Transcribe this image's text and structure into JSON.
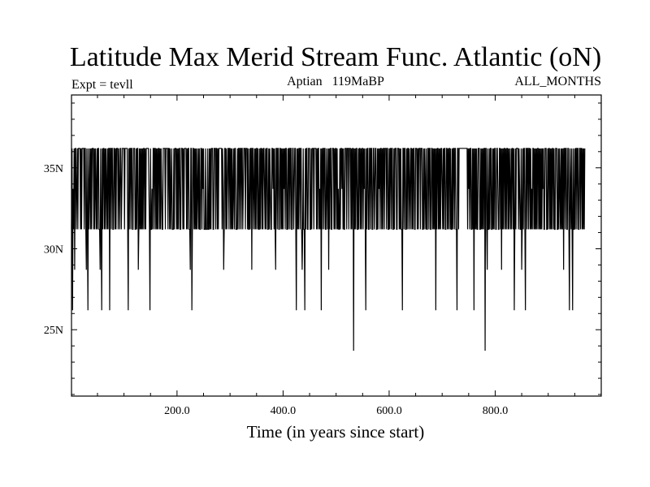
{
  "chart_data": {
    "type": "line",
    "title": "Latitude Max Merid Stream Func. Atlantic (oN)",
    "subtitle_left": "Expt = tevll",
    "subtitle_center": "Aptian   119MaBP",
    "subtitle_right": "ALL_MONTHS",
    "xlabel": "Time (in years since start)",
    "ylabel": "",
    "xlim": [
      1,
      1000
    ],
    "ylim": [
      20.9,
      39.5
    ],
    "x_ticks": [
      200,
      400,
      600,
      800
    ],
    "x_tick_labels": [
      "200.0",
      "400.0",
      "600.0",
      "800.0"
    ],
    "y_ticks": [
      25,
      30,
      35
    ],
    "y_tick_labels": [
      "25N",
      "30N",
      "35N"
    ],
    "grid": false,
    "levels": [
      23.7,
      26.2,
      28.7,
      31.2,
      33.7,
      36.2
    ],
    "series": [
      {
        "x_start": 1,
        "x_step": 1,
        "values": [
          31.2,
          36.2,
          26.2,
          33.7,
          31.2,
          36.2,
          28.7,
          36.2,
          36.2,
          31.2,
          33.7,
          36.2,
          31.2,
          36.2,
          36.2,
          36.2,
          36.2,
          31.2,
          36.2,
          31.2,
          36.2,
          36.2,
          36.2,
          36.2,
          31.2,
          36.2,
          36.2,
          31.2,
          28.7,
          36.2,
          31.2,
          26.2,
          36.2,
          31.2,
          33.7,
          36.2,
          31.2,
          36.2,
          31.2,
          36.2,
          36.2,
          36.2,
          31.2,
          36.2,
          31.2,
          36.2,
          33.7,
          31.2,
          36.2,
          31.2,
          36.2,
          36.2,
          31.2,
          31.2,
          28.7,
          36.2,
          31.2,
          26.2,
          36.2,
          31.2,
          36.2,
          36.2,
          31.2,
          36.2,
          31.2,
          36.2,
          33.7,
          31.2,
          36.2,
          31.2,
          36.2,
          36.2,
          26.2,
          36.2,
          36.2,
          31.2,
          36.2,
          36.2,
          31.2,
          31.2,
          36.2,
          36.2,
          31.2,
          36.2,
          31.2,
          36.2,
          36.2,
          36.2,
          31.2,
          36.2,
          33.7,
          31.2,
          36.2,
          36.2,
          31.2,
          33.7,
          36.2,
          36.2,
          36.2,
          36.2,
          31.2,
          36.2,
          36.2,
          36.2,
          36.2,
          36.2,
          31.2,
          26.2,
          36.2,
          31.2,
          36.2,
          36.2,
          31.2,
          36.2,
          36.2,
          31.2,
          31.2,
          36.2,
          36.2,
          36.2,
          31.2,
          31.2,
          36.2,
          31.2,
          36.2,
          36.2,
          28.7,
          31.2,
          36.2,
          31.2,
          36.2,
          31.2,
          36.2,
          31.2,
          36.2,
          31.2,
          36.2,
          36.2,
          31.2,
          36.2,
          31.2,
          36.2,
          36.2,
          36.2,
          36.2,
          36.2,
          33.7,
          31.2,
          26.2,
          36.2,
          31.2,
          31.2,
          33.7,
          31.2,
          36.2,
          36.2,
          31.2,
          36.2,
          36.2,
          31.2,
          36.2,
          31.2,
          36.2,
          31.2,
          36.2,
          36.2,
          31.2,
          36.2,
          31.2,
          36.2,
          33.7,
          31.2,
          31.2,
          36.2,
          36.2,
          36.2,
          36.2,
          31.2,
          36.2,
          36.2,
          36.2,
          36.2,
          31.2,
          36.2,
          36.2,
          31.2,
          36.2,
          31.2,
          33.7,
          36.2,
          31.2,
          31.2,
          31.2,
          36.2,
          31.2,
          36.2,
          36.2,
          36.2,
          31.2,
          36.2,
          31.2,
          36.2,
          31.2,
          36.2,
          36.2,
          31.2,
          31.2,
          36.2,
          36.2,
          36.2,
          31.2,
          36.2,
          31.2,
          36.2,
          36.2,
          36.2,
          36.2,
          31.2,
          36.2,
          31.2,
          36.2,
          36.2,
          31.2,
          31.2,
          28.7,
          36.2,
          36.2,
          26.2,
          31.2,
          36.2,
          36.2,
          31.2,
          36.2,
          31.2,
          36.2,
          31.2,
          36.2,
          31.2,
          33.7,
          36.2,
          31.2,
          36.2,
          31.2,
          31.2,
          36.2,
          36.2,
          31.2,
          36.2,
          33.7,
          36.2,
          31.2,
          31.2,
          31.2,
          36.2,
          31.2,
          31.2,
          31.2,
          36.2,
          31.2,
          31.2,
          36.2,
          31.2,
          36.2,
          31.2,
          36.2,
          36.2,
          36.2,
          31.2,
          31.2,
          36.2,
          36.2,
          36.2,
          31.2,
          36.2,
          36.2,
          31.2,
          36.2,
          31.2,
          36.2,
          36.2,
          36.2,
          36.2,
          36.2,
          36.2,
          31.2,
          36.2,
          33.7,
          28.7,
          31.2,
          36.2,
          36.2,
          31.2,
          36.2,
          31.2,
          33.7,
          36.2,
          36.2,
          31.2,
          36.2,
          36.2,
          31.2,
          36.2,
          31.2,
          36.2,
          31.2,
          33.7,
          36.2,
          31.2,
          36.2,
          36.2,
          31.2,
          31.2,
          31.2,
          36.2,
          31.2,
          36.2,
          36.2,
          31.2,
          36.2,
          36.2,
          31.2,
          36.2,
          36.2,
          31.2,
          33.7,
          36.2,
          36.2,
          36.2,
          31.2,
          36.2,
          36.2,
          36.2,
          31.2,
          36.2,
          31.2,
          31.2,
          36.2,
          31.2,
          36.2,
          36.2,
          28.7,
          36.2,
          36.2,
          31.2,
          33.7,
          36.2,
          31.2,
          36.2,
          31.2,
          36.2,
          36.2,
          31.2,
          36.2,
          31.2,
          31.2,
          36.2,
          31.2,
          36.2,
          36.2,
          31.2,
          36.2,
          31.2,
          36.2,
          36.2,
          33.7,
          31.2,
          36.2,
          31.2,
          36.2,
          36.2,
          31.2,
          31.2,
          36.2,
          31.2,
          36.2,
          33.7,
          31.2,
          31.2,
          36.2,
          36.2,
          33.7,
          36.2,
          31.2,
          36.2,
          31.2,
          28.7,
          36.2,
          36.2,
          31.2,
          36.2,
          36.2,
          31.2,
          31.2,
          36.2,
          36.2,
          31.2,
          36.2,
          31.2,
          36.2,
          31.2,
          36.2,
          33.7,
          36.2,
          31.2,
          36.2,
          36.2,
          31.2,
          31.2,
          36.2,
          31.2,
          36.2,
          36.2,
          31.2,
          36.2,
          36.2,
          31.2,
          31.2,
          36.2,
          36.2,
          31.2,
          33.7,
          36.2,
          36.2,
          31.2,
          26.2,
          36.2,
          31.2,
          36.2,
          31.2,
          36.2,
          36.2,
          31.2,
          36.2,
          36.2,
          31.2,
          28.7,
          31.2,
          36.2,
          31.2,
          31.2,
          26.2,
          36.2,
          31.2,
          36.2,
          36.2,
          31.2,
          31.2,
          36.2,
          36.2,
          36.2,
          31.2,
          31.2,
          36.2,
          31.2,
          36.2,
          36.2,
          36.2,
          31.2,
          36.2,
          36.2,
          36.2,
          36.2,
          31.2,
          36.2,
          31.2,
          36.2,
          36.2,
          31.2,
          33.7,
          31.2,
          36.2,
          26.2,
          36.2,
          31.2,
          36.2,
          36.2,
          31.2,
          36.2,
          36.2,
          31.2,
          31.2,
          36.2,
          33.7,
          31.2,
          36.2,
          28.7,
          36.2,
          31.2,
          36.2,
          36.2,
          31.2,
          31.2,
          36.2,
          36.2,
          36.2,
          31.2,
          36.2,
          31.2,
          36.2,
          36.2,
          31.2,
          36.2,
          31.2,
          33.7,
          31.2,
          31.2,
          36.2,
          31.2,
          36.2,
          36.2,
          33.7,
          36.2,
          31.2,
          36.2,
          31.2,
          31.2,
          36.2,
          36.2,
          36.2,
          31.2,
          36.2,
          36.2,
          36.2,
          31.2,
          36.2,
          36.2,
          36.2,
          31.2,
          36.2,
          31.2,
          36.2,
          36.2,
          23.7,
          36.2,
          31.2,
          36.2,
          31.2,
          36.2,
          36.2,
          31.2,
          31.2,
          36.2,
          31.2,
          36.2,
          36.2,
          31.2,
          36.2,
          31.2,
          36.2,
          36.2,
          31.2,
          36.2,
          33.7,
          36.2,
          31.2,
          26.2,
          36.2,
          31.2,
          36.2,
          36.2,
          31.2,
          31.2,
          36.2,
          36.2,
          31.2,
          36.2,
          36.2,
          31.2,
          31.2,
          36.2,
          36.2,
          31.2,
          33.7,
          36.2,
          36.2,
          31.2,
          31.2,
          36.2,
          31.2,
          36.2,
          33.7,
          36.2,
          31.2,
          36.2,
          36.2,
          31.2,
          36.2,
          31.2,
          36.2,
          36.2,
          31.2,
          36.2,
          36.2,
          36.2,
          31.2,
          36.2,
          36.2,
          31.2,
          31.2,
          36.2,
          31.2,
          36.2,
          36.2,
          31.2,
          36.2,
          36.2,
          31.2,
          31.2,
          36.2,
          31.2,
          36.2,
          36.2,
          36.2,
          31.2,
          31.2,
          36.2,
          36.2,
          36.2,
          31.2,
          36.2,
          31.2,
          36.2,
          31.2,
          31.2,
          26.2,
          36.2,
          36.2,
          31.2,
          36.2,
          36.2,
          31.2,
          31.2,
          36.2,
          31.2,
          36.2,
          36.2,
          31.2,
          36.2,
          33.7,
          31.2,
          36.2,
          36.2,
          31.2,
          36.2,
          31.2,
          36.2,
          36.2,
          31.2,
          31.2,
          36.2,
          36.2,
          36.2,
          31.2,
          36.2,
          31.2,
          36.2,
          36.2,
          36.2,
          31.2,
          36.2,
          36.2,
          36.2,
          31.2,
          31.2,
          36.2,
          31.2,
          36.2,
          33.7,
          31.2,
          36.2,
          31.2,
          31.2,
          36.2,
          36.2,
          31.2,
          36.2,
          36.2,
          31.2,
          31.2,
          36.2,
          36.2,
          31.2,
          36.2,
          31.2,
          36.2,
          31.2,
          36.2,
          26.2,
          36.2,
          31.2,
          36.2,
          36.2,
          31.2,
          36.2,
          31.2,
          36.2,
          31.2,
          36.2,
          36.2,
          33.7,
          31.2,
          36.2,
          31.2,
          36.2,
          36.2,
          31.2,
          31.2,
          36.2,
          36.2,
          31.2,
          36.2,
          31.2,
          36.2,
          36.2,
          31.2,
          36.2,
          31.2,
          31.2,
          36.2,
          31.2,
          36.2,
          36.2,
          31.2,
          36.2,
          36.2,
          31.2,
          31.2,
          26.2,
          36.2,
          36.2,
          31.2,
          36.2,
          36.2,
          36.2,
          36.2,
          36.2,
          36.2,
          36.2,
          36.2,
          36.2,
          36.2,
          36.2,
          36.2,
          36.2,
          36.2,
          36.2,
          36.2,
          31.2,
          36.2,
          33.7,
          36.2,
          31.2,
          36.2,
          36.2,
          31.2,
          31.2,
          36.2,
          31.2,
          36.2,
          26.2,
          36.2,
          31.2,
          36.2,
          31.2,
          36.2,
          31.2,
          31.2,
          36.2,
          36.2,
          36.2,
          31.2,
          31.2,
          36.2,
          31.2,
          36.2,
          31.2,
          36.2,
          31.2,
          36.2,
          36.2,
          23.7,
          36.2,
          36.2,
          31.2,
          28.7,
          36.2,
          31.2,
          31.2,
          36.2,
          31.2,
          36.2,
          36.2,
          31.2,
          31.2,
          36.2,
          31.2,
          36.2,
          31.2,
          36.2,
          36.2,
          31.2,
          31.2,
          36.2,
          36.2,
          33.7,
          31.2,
          31.2,
          36.2,
          36.2,
          31.2,
          36.2,
          28.7,
          36.2,
          31.2,
          36.2,
          31.2,
          36.2,
          36.2,
          31.2,
          36.2,
          31.2,
          36.2,
          36.2,
          31.2,
          36.2,
          31.2,
          36.2,
          33.7,
          31.2,
          36.2,
          31.2,
          36.2,
          36.2,
          31.2,
          36.2,
          26.2,
          31.2,
          36.2,
          31.2,
          36.2,
          36.2,
          36.2,
          36.2,
          31.2,
          36.2,
          33.7,
          31.2,
          31.2,
          36.2,
          28.7,
          31.2,
          36.2,
          31.2,
          36.2,
          36.2,
          31.2,
          26.2,
          36.2,
          36.2,
          31.2,
          36.2,
          36.2,
          31.2,
          36.2,
          36.2,
          31.2,
          36.2,
          31.2,
          33.7,
          31.2,
          36.2,
          36.2,
          31.2,
          36.2,
          31.2,
          36.2,
          31.2,
          36.2,
          31.2,
          36.2,
          36.2,
          31.2,
          36.2,
          31.2,
          36.2,
          31.2,
          36.2,
          31.2,
          36.2,
          33.7,
          36.2,
          31.2,
          31.2,
          36.2,
          36.2,
          36.2,
          31.2,
          31.2,
          36.2,
          31.2,
          36.2,
          36.2,
          31.2,
          36.2,
          31.2,
          36.2,
          31.2,
          36.2,
          36.2,
          31.2,
          36.2,
          31.2,
          31.2,
          36.2,
          36.2,
          36.2,
          31.2,
          31.2,
          36.2,
          31.2,
          36.2,
          33.7,
          31.2,
          36.2,
          31.2,
          36.2,
          31.2,
          36.2,
          28.7,
          36.2,
          36.2,
          31.2,
          36.2,
          36.2,
          31.2,
          31.2,
          36.2,
          36.2,
          31.2,
          26.2,
          36.2,
          33.7,
          31.2,
          36.2,
          31.2,
          26.2,
          36.2,
          31.2,
          31.2,
          36.2,
          31.2,
          36.2,
          36.2,
          31.2,
          36.2,
          36.2,
          31.2,
          31.2,
          36.2,
          36.2,
          31.2,
          36.2,
          36.2,
          31.2,
          36.2,
          31.2,
          36.2,
          31.2,
          36.2
        ]
      }
    ]
  }
}
